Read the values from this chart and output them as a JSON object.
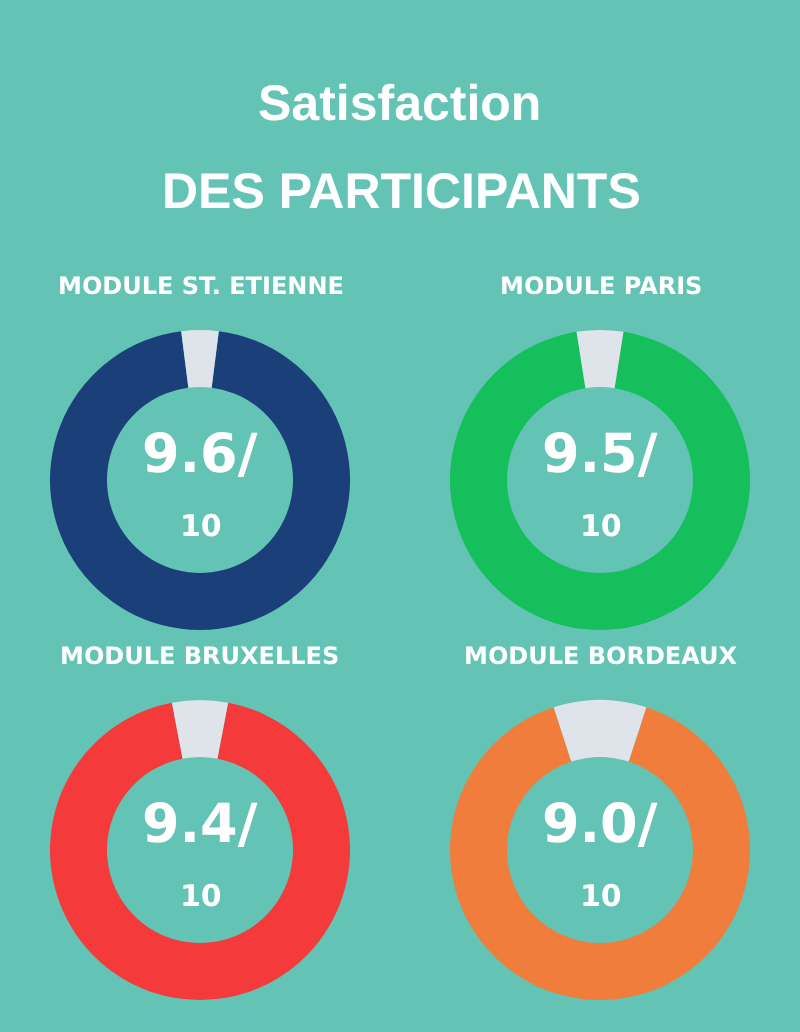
{
  "chart_data": [
    {
      "type": "other",
      "title": "Satisfaction",
      "subtitle": "DES PARTICIPANTS"
    },
    {
      "type": "donut",
      "title": "MODULE ST. ETIENNE",
      "categories": [
        null,
        null
      ],
      "values": [
        96,
        4
      ],
      "colors": [
        "#1b3f78",
        "#dfe3ea"
      ],
      "annotations": [
        "9.6/",
        "10"
      ]
    },
    {
      "type": "donut",
      "title": "MODULE PARIS",
      "categories": [
        null,
        null
      ],
      "values": [
        95,
        5
      ],
      "colors": [
        "#14bf5c",
        "#dfe3ea"
      ],
      "annotations": [
        "9.5/",
        "10"
      ]
    },
    {
      "type": "donut",
      "title": "MODULE BRUXELLES",
      "categories": [
        null,
        null
      ],
      "values": [
        94,
        6
      ],
      "colors": [
        "#f43a3a",
        "#dfe3ea"
      ],
      "annotations": [
        "9.4/",
        "10"
      ]
    },
    {
      "type": "donut",
      "title": "MODULE BORDEAUX",
      "categories": [
        null,
        null
      ],
      "values": [
        90,
        10
      ],
      "colors": [
        "#f07d3c",
        "#dfe3ea"
      ],
      "annotations": [
        "9.0/",
        "10"
      ]
    }
  ]
}
